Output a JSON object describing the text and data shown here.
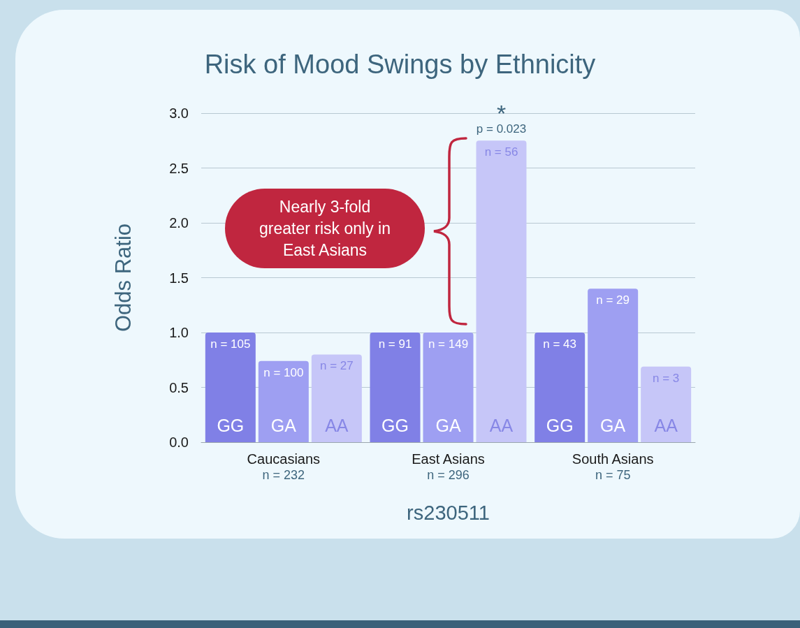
{
  "chart_data": {
    "type": "bar",
    "title": "Risk of Mood Swings by Ethnicity",
    "xlabel": "rs230511",
    "ylabel": "Odds Ratio",
    "categories": [
      "Caucasians\nn = 232",
      "East Asians\nn = 296",
      "South Asians\nn = 75"
    ],
    "series": [
      {
        "name": "GG",
        "color": "#8080e6",
        "values": [
          1.0,
          1.0,
          1.0
        ]
      },
      {
        "name": "GA",
        "color": "#9e9ff2",
        "values": [
          0.74,
          1.0,
          1.4
        ]
      },
      {
        "name": "AA",
        "color": "#c6c6f8",
        "values": [
          0.8,
          2.75,
          0.69
        ]
      }
    ],
    "ylim": [
      0,
      3.0
    ],
    "yticks": [
      {
        "value": 0,
        "label": "0.0"
      },
      {
        "value": 0.5,
        "label": "0.5"
      },
      {
        "value": 1,
        "label": "1.0"
      },
      {
        "value": 1.5,
        "label": "1.5"
      },
      {
        "value": 2,
        "label": "2.0"
      },
      {
        "value": 2.5,
        "label": "2.5"
      },
      {
        "value": 3,
        "label": "3.0"
      }
    ],
    "grid": "y",
    "legend": false,
    "annotations": [
      "*",
      "p = 0.023",
      "Nearly 3-fold greater risk only in East Asians",
      "n = 105",
      "n = 100",
      "n = 27",
      "n = 91",
      "n = 149",
      "n = 56",
      "n = 43",
      "n = 29",
      "n = 3"
    ]
  }
}
